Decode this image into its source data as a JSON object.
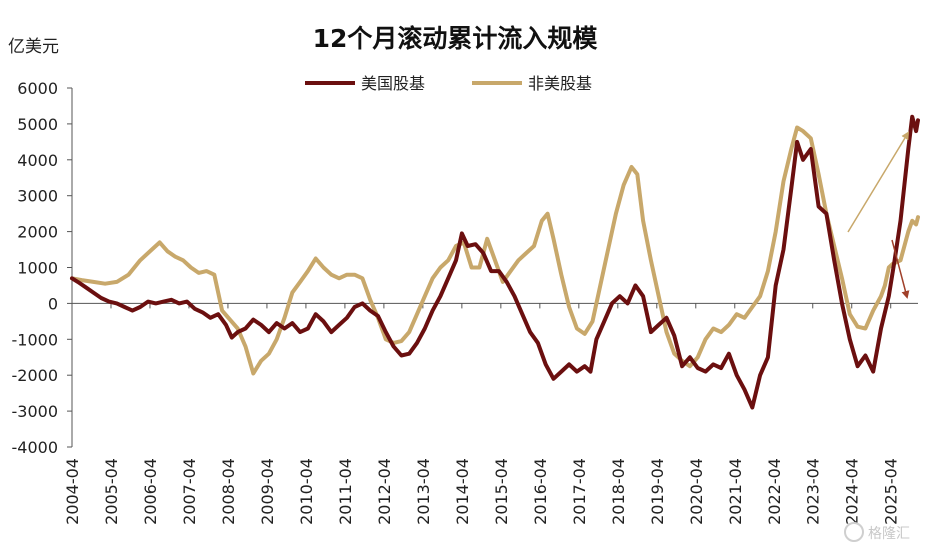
{
  "chart_data": {
    "type": "line",
    "title": "12个月滚动累计流入规模",
    "ylabel": "亿美元",
    "xlabel": "",
    "ylim": [
      -4000,
      6000
    ],
    "yticks": [
      6000,
      5000,
      4000,
      3000,
      2000,
      1000,
      0,
      -1000,
      -2000,
      -3000,
      -4000
    ],
    "xlim": [
      2004.25,
      2025.95
    ],
    "x_tick_labels": [
      "2004-04",
      "2005-04",
      "2006-04",
      "2007-04",
      "2008-04",
      "2009-04",
      "2010-04",
      "2011-04",
      "2012-04",
      "2013-04",
      "2014-04",
      "2015-04",
      "2016-04",
      "2017-04",
      "2018-04",
      "2019-04",
      "2020-04",
      "2021-04",
      "2022-04",
      "2023-04",
      "2024-04",
      "2025-04"
    ],
    "grid": false,
    "legend_position": "top-center",
    "colors": {
      "us": "#6b0f0f",
      "nonus": "#c8a86b",
      "arrow_up": "#c8a86b",
      "arrow_down": "#a0402a"
    },
    "watermark": "格隆汇",
    "series": [
      {
        "name": "美国股基",
        "color": "#6b0f0f",
        "points": [
          [
            2004.25,
            700
          ],
          [
            2004.4,
            600
          ],
          [
            2004.6,
            450
          ],
          [
            2004.8,
            300
          ],
          [
            2005.0,
            150
          ],
          [
            2005.2,
            50
          ],
          [
            2005.4,
            0
          ],
          [
            2005.6,
            -100
          ],
          [
            2005.8,
            -200
          ],
          [
            2006.0,
            -100
          ],
          [
            2006.2,
            50
          ],
          [
            2006.4,
            0
          ],
          [
            2006.6,
            50
          ],
          [
            2006.8,
            100
          ],
          [
            2007.0,
            0
          ],
          [
            2007.2,
            50
          ],
          [
            2007.4,
            -150
          ],
          [
            2007.6,
            -250
          ],
          [
            2007.8,
            -400
          ],
          [
            2008.0,
            -300
          ],
          [
            2008.2,
            -600
          ],
          [
            2008.35,
            -950
          ],
          [
            2008.5,
            -800
          ],
          [
            2008.7,
            -700
          ],
          [
            2008.9,
            -450
          ],
          [
            2009.1,
            -600
          ],
          [
            2009.3,
            -800
          ],
          [
            2009.5,
            -550
          ],
          [
            2009.7,
            -700
          ],
          [
            2009.9,
            -550
          ],
          [
            2010.1,
            -800
          ],
          [
            2010.3,
            -700
          ],
          [
            2010.5,
            -300
          ],
          [
            2010.7,
            -500
          ],
          [
            2010.9,
            -800
          ],
          [
            2011.1,
            -600
          ],
          [
            2011.3,
            -400
          ],
          [
            2011.5,
            -100
          ],
          [
            2011.7,
            0
          ],
          [
            2011.9,
            -200
          ],
          [
            2012.1,
            -350
          ],
          [
            2012.3,
            -800
          ],
          [
            2012.5,
            -1200
          ],
          [
            2012.7,
            -1450
          ],
          [
            2012.9,
            -1400
          ],
          [
            2013.1,
            -1100
          ],
          [
            2013.3,
            -700
          ],
          [
            2013.5,
            -200
          ],
          [
            2013.7,
            200
          ],
          [
            2013.9,
            700
          ],
          [
            2014.1,
            1200
          ],
          [
            2014.25,
            1950
          ],
          [
            2014.4,
            1600
          ],
          [
            2014.6,
            1650
          ],
          [
            2014.8,
            1400
          ],
          [
            2015.0,
            900
          ],
          [
            2015.2,
            900
          ],
          [
            2015.4,
            600
          ],
          [
            2015.6,
            200
          ],
          [
            2015.8,
            -300
          ],
          [
            2016.0,
            -800
          ],
          [
            2016.2,
            -1100
          ],
          [
            2016.4,
            -1700
          ],
          [
            2016.6,
            -2100
          ],
          [
            2016.8,
            -1900
          ],
          [
            2017.0,
            -1700
          ],
          [
            2017.2,
            -1900
          ],
          [
            2017.4,
            -1750
          ],
          [
            2017.55,
            -1900
          ],
          [
            2017.7,
            -1000
          ],
          [
            2017.9,
            -500
          ],
          [
            2018.1,
            0
          ],
          [
            2018.3,
            200
          ],
          [
            2018.5,
            0
          ],
          [
            2018.7,
            500
          ],
          [
            2018.9,
            200
          ],
          [
            2019.1,
            -800
          ],
          [
            2019.3,
            -600
          ],
          [
            2019.5,
            -400
          ],
          [
            2019.7,
            -900
          ],
          [
            2019.9,
            -1750
          ],
          [
            2020.1,
            -1500
          ],
          [
            2020.3,
            -1800
          ],
          [
            2020.5,
            -1900
          ],
          [
            2020.7,
            -1700
          ],
          [
            2020.9,
            -1800
          ],
          [
            2021.1,
            -1400
          ],
          [
            2021.3,
            -2000
          ],
          [
            2021.5,
            -2400
          ],
          [
            2021.7,
            -2900
          ],
          [
            2021.9,
            -2000
          ],
          [
            2022.1,
            -1500
          ],
          [
            2022.3,
            500
          ],
          [
            2022.5,
            1500
          ],
          [
            2022.7,
            3200
          ],
          [
            2022.85,
            4500
          ],
          [
            2023.0,
            4000
          ],
          [
            2023.2,
            4300
          ],
          [
            2023.4,
            2700
          ],
          [
            2023.6,
            2500
          ],
          [
            2023.8,
            1200
          ],
          [
            2024.0,
            0
          ],
          [
            2024.2,
            -1000
          ],
          [
            2024.4,
            -1750
          ],
          [
            2024.6,
            -1450
          ],
          [
            2024.8,
            -1900
          ],
          [
            2025.0,
            -700
          ],
          [
            2025.2,
            200
          ],
          [
            2025.35,
            1200
          ],
          [
            2025.5,
            2300
          ],
          [
            2025.6,
            3300
          ],
          [
            2025.7,
            4300
          ],
          [
            2025.8,
            5200
          ],
          [
            2025.9,
            4800
          ],
          [
            2025.95,
            5100
          ]
        ]
      },
      {
        "name": "非美股基",
        "color": "#c8a86b",
        "points": [
          [
            2004.25,
            700
          ],
          [
            2004.5,
            650
          ],
          [
            2004.8,
            600
          ],
          [
            2005.1,
            550
          ],
          [
            2005.4,
            600
          ],
          [
            2005.7,
            800
          ],
          [
            2006.0,
            1200
          ],
          [
            2006.3,
            1500
          ],
          [
            2006.5,
            1700
          ],
          [
            2006.7,
            1450
          ],
          [
            2006.9,
            1300
          ],
          [
            2007.1,
            1200
          ],
          [
            2007.3,
            1000
          ],
          [
            2007.5,
            850
          ],
          [
            2007.7,
            900
          ],
          [
            2007.9,
            800
          ],
          [
            2008.1,
            -200
          ],
          [
            2008.3,
            -450
          ],
          [
            2008.5,
            -700
          ],
          [
            2008.7,
            -1200
          ],
          [
            2008.9,
            -1950
          ],
          [
            2009.1,
            -1600
          ],
          [
            2009.3,
            -1400
          ],
          [
            2009.5,
            -1000
          ],
          [
            2009.7,
            -400
          ],
          [
            2009.9,
            300
          ],
          [
            2010.1,
            600
          ],
          [
            2010.3,
            900
          ],
          [
            2010.5,
            1250
          ],
          [
            2010.7,
            1000
          ],
          [
            2010.9,
            800
          ],
          [
            2011.1,
            700
          ],
          [
            2011.3,
            800
          ],
          [
            2011.5,
            800
          ],
          [
            2011.7,
            700
          ],
          [
            2011.9,
            100
          ],
          [
            2012.1,
            -400
          ],
          [
            2012.3,
            -1000
          ],
          [
            2012.5,
            -1100
          ],
          [
            2012.7,
            -1050
          ],
          [
            2012.9,
            -800
          ],
          [
            2013.1,
            -300
          ],
          [
            2013.3,
            200
          ],
          [
            2013.5,
            700
          ],
          [
            2013.7,
            1000
          ],
          [
            2013.9,
            1200
          ],
          [
            2014.1,
            1600
          ],
          [
            2014.3,
            1700
          ],
          [
            2014.5,
            1000
          ],
          [
            2014.7,
            1000
          ],
          [
            2014.9,
            1800
          ],
          [
            2015.1,
            1200
          ],
          [
            2015.3,
            600
          ],
          [
            2015.5,
            900
          ],
          [
            2015.7,
            1200
          ],
          [
            2015.9,
            1400
          ],
          [
            2016.1,
            1600
          ],
          [
            2016.3,
            2300
          ],
          [
            2016.45,
            2500
          ],
          [
            2016.6,
            1800
          ],
          [
            2016.8,
            800
          ],
          [
            2017.0,
            -100
          ],
          [
            2017.2,
            -700
          ],
          [
            2017.4,
            -850
          ],
          [
            2017.6,
            -500
          ],
          [
            2017.8,
            500
          ],
          [
            2018.0,
            1500
          ],
          [
            2018.2,
            2500
          ],
          [
            2018.4,
            3300
          ],
          [
            2018.6,
            3800
          ],
          [
            2018.75,
            3600
          ],
          [
            2018.9,
            2300
          ],
          [
            2019.1,
            1200
          ],
          [
            2019.3,
            200
          ],
          [
            2019.5,
            -800
          ],
          [
            2019.7,
            -1400
          ],
          [
            2019.9,
            -1600
          ],
          [
            2020.1,
            -1750
          ],
          [
            2020.3,
            -1500
          ],
          [
            2020.5,
            -1000
          ],
          [
            2020.7,
            -700
          ],
          [
            2020.9,
            -800
          ],
          [
            2021.1,
            -600
          ],
          [
            2021.3,
            -300
          ],
          [
            2021.5,
            -400
          ],
          [
            2021.7,
            -100
          ],
          [
            2021.9,
            200
          ],
          [
            2022.1,
            900
          ],
          [
            2022.3,
            2000
          ],
          [
            2022.5,
            3400
          ],
          [
            2022.7,
            4300
          ],
          [
            2022.85,
            4900
          ],
          [
            2023.0,
            4800
          ],
          [
            2023.2,
            4600
          ],
          [
            2023.4,
            3600
          ],
          [
            2023.6,
            2500
          ],
          [
            2023.8,
            1600
          ],
          [
            2024.0,
            700
          ],
          [
            2024.2,
            -300
          ],
          [
            2024.4,
            -650
          ],
          [
            2024.6,
            -700
          ],
          [
            2024.8,
            -200
          ],
          [
            2025.0,
            200
          ],
          [
            2025.1,
            500
          ],
          [
            2025.2,
            1000
          ],
          [
            2025.3,
            1100
          ],
          [
            2025.5,
            1200
          ],
          [
            2025.6,
            1600
          ],
          [
            2025.7,
            2000
          ],
          [
            2025.8,
            2300
          ],
          [
            2025.9,
            2200
          ],
          [
            2025.95,
            2400
          ]
        ]
      }
    ]
  }
}
